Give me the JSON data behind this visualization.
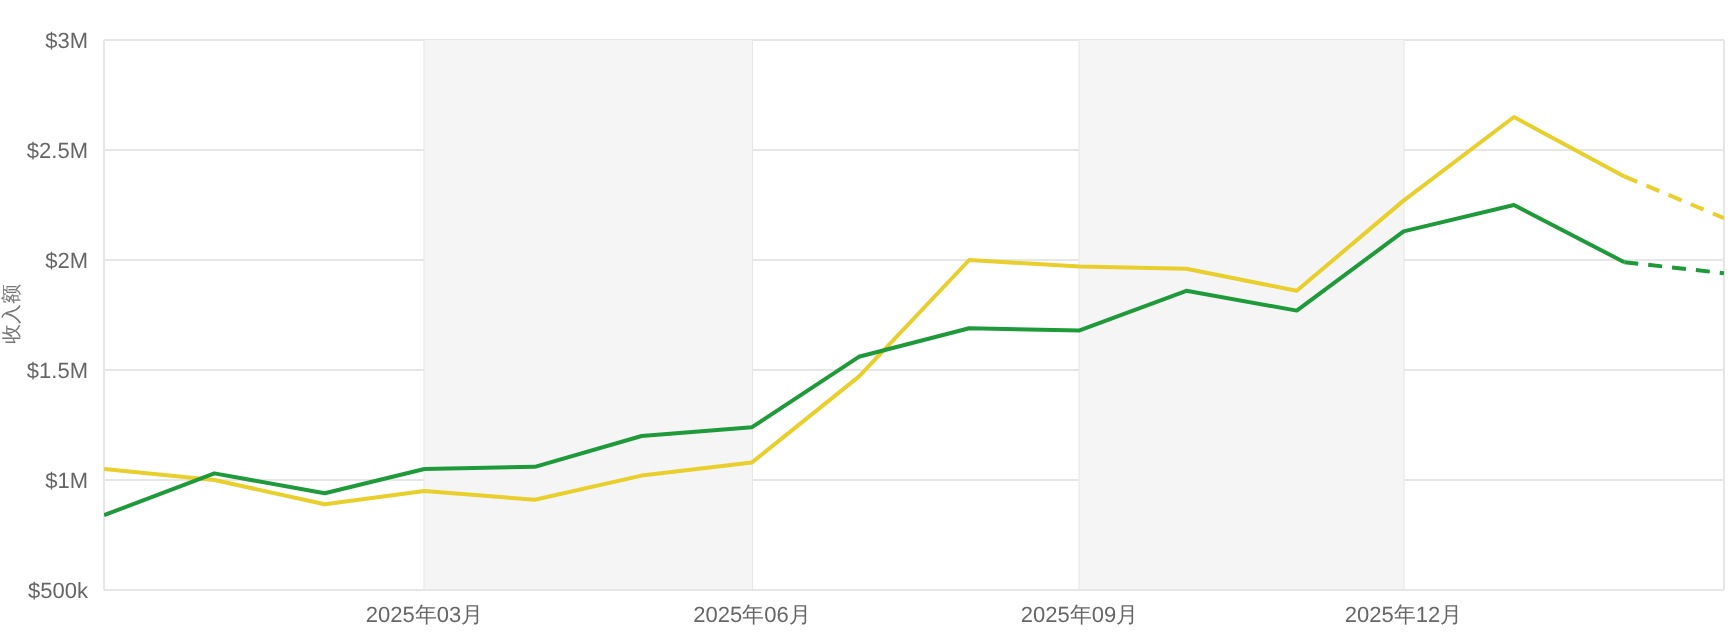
{
  "chart_data": {
    "type": "line",
    "ylabel": "收入额",
    "x": [
      "2024-12",
      "2025-01",
      "2025-02",
      "2025-03",
      "2025-04",
      "2025-05",
      "2025-06",
      "2025-07",
      "2025-08",
      "2025-09",
      "2025-10",
      "2025-11",
      "2025-12",
      "2026-01",
      "2026-02"
    ],
    "series": [
      {
        "color": "#e8cf2c",
        "values": [
          1050000,
          1000000,
          890000,
          950000,
          910000,
          1020000,
          1080000,
          1470000,
          2000000,
          1970000,
          1960000,
          1860000,
          2270000,
          2650000,
          2380000
        ]
      },
      {
        "color": "#1f9a3a",
        "values": [
          840000,
          1030000,
          940000,
          1050000,
          1060000,
          1200000,
          1240000,
          1560000,
          1690000,
          1680000,
          1860000,
          1770000,
          2130000,
          2250000,
          1990000
        ]
      },
      {
        "color": "#e8cf2c",
        "line_style": "dashed",
        "x": [
          "2026-02",
          "2026-03"
        ],
        "values": [
          2380000,
          2190000
        ]
      },
      {
        "color": "#1f9a3a",
        "line_style": "dashed",
        "x": [
          "2026-02",
          "2026-03"
        ],
        "values": [
          1990000,
          1940000
        ]
      }
    ],
    "xlim": [
      "2024-12",
      "2026-03"
    ],
    "xticks": [
      {
        "value": "2025-03",
        "label": "2025年03月"
      },
      {
        "value": "2025-06",
        "label": "2025年06月"
      },
      {
        "value": "2025-09",
        "label": "2025年09月"
      },
      {
        "value": "2025-12",
        "label": "2025年12月"
      }
    ],
    "ylim": [
      500000,
      3000000
    ],
    "yticks": [
      {
        "value": 500000,
        "label": "$500k"
      },
      {
        "value": 1000000,
        "label": "$1M"
      },
      {
        "value": 1500000,
        "label": "$1.5M"
      },
      {
        "value": 2000000,
        "label": "$2M"
      },
      {
        "value": 2500000,
        "label": "$2.5M"
      },
      {
        "value": 3000000,
        "label": "$3M"
      }
    ],
    "bands": [
      {
        "axis": "x",
        "from": "2025-03",
        "to": "2025-06",
        "color": "#f5f5f5"
      },
      {
        "axis": "x",
        "from": "2025-09",
        "to": "2025-12",
        "color": "#f5f5f5"
      }
    ],
    "grid": true,
    "marker": "none",
    "line_style": "solid"
  }
}
